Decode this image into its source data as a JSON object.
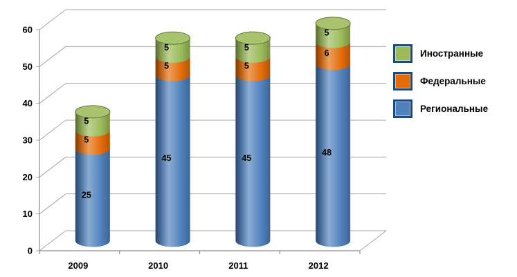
{
  "page": {
    "background": "#ffffff"
  },
  "chart_data": {
    "type": "bar",
    "subtype": "stacked-cylinder-3d",
    "title": "",
    "xlabel": "",
    "ylabel": "",
    "categories": [
      "2009",
      "2010",
      "2011",
      "2012"
    ],
    "series": [
      {
        "name": "Региональные",
        "color": "#4F81BD",
        "values": [
          25,
          45,
          45,
          48
        ]
      },
      {
        "name": "Федеральные",
        "color": "#E36C09",
        "values": [
          5,
          5,
          5,
          6
        ]
      },
      {
        "name": "Иностранные",
        "color": "#9BBB59",
        "values": [
          5,
          5,
          5,
          5
        ]
      }
    ],
    "totals": [
      35,
      55,
      55,
      59
    ],
    "ylim": [
      0,
      60
    ],
    "yticks": [
      0,
      10,
      20,
      30,
      40,
      50,
      60
    ],
    "grid": true,
    "data_labels": true,
    "legend": {
      "position": "right",
      "entries": [
        {
          "label": "Иностранные",
          "series": "Иностранные"
        },
        {
          "label": "Федеральные",
          "series": "Федеральные"
        },
        {
          "label": "Региональные",
          "series": "Региональные"
        }
      ],
      "swatch_border_color": "#1F497D"
    },
    "colors": {
      "grid": "#A6A6A6",
      "axis": "#8C8C8C",
      "text": "#000000"
    }
  }
}
